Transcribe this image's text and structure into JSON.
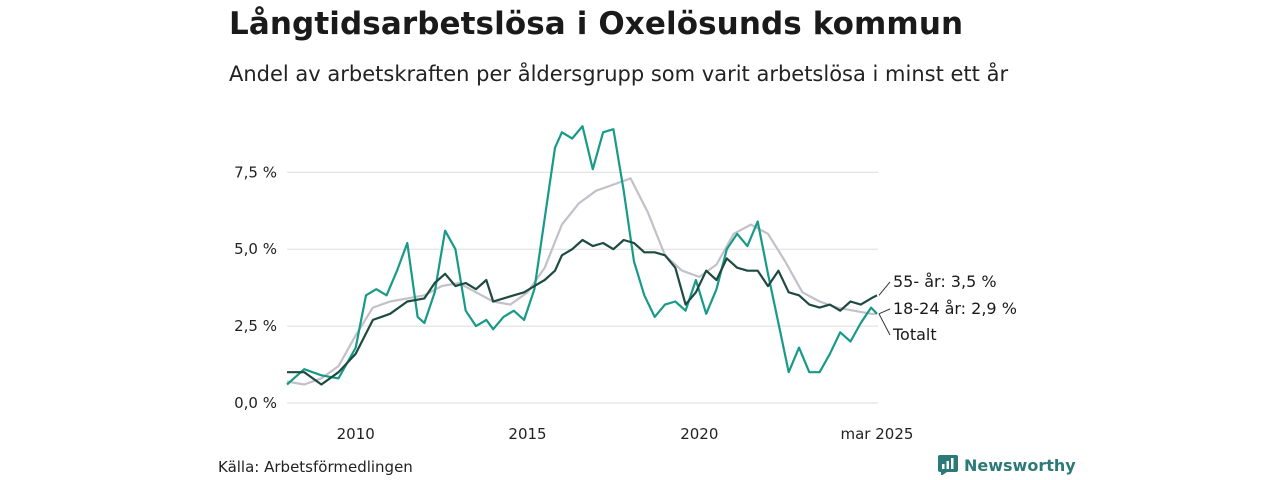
{
  "title": "Långtidsarbetslösa i Oxelösunds kommun",
  "subtitle": "Andel av arbetskraften per åldersgrupp som varit arbetslösa i minst ett år",
  "source": "Källa: Arbetsförmedlingen",
  "brand": "Newsworthy",
  "colors": {
    "totalt": "#c2c0c8",
    "age_18_24": "#179a87",
    "age_55": "#1f4a40",
    "grid": "#dddddd",
    "brand": "#2b7a78"
  },
  "chart_data": {
    "type": "line",
    "title": "Långtidsarbetslösa i Oxelösunds kommun",
    "subtitle": "Andel av arbetskraften per åldersgrupp som varit arbetslösa i minst ett år",
    "xlabel": "",
    "ylabel": "",
    "ylim": [
      0,
      9.2
    ],
    "xlim": [
      2008.0,
      2025.2
    ],
    "yticks": [
      0,
      2.5,
      5.0,
      7.5
    ],
    "ytick_labels": [
      "0,0 %",
      "2,5 %",
      "5,0 %",
      "7,5 %"
    ],
    "xticks": [
      2010,
      2015,
      2020,
      2025.17
    ],
    "xtick_labels": [
      "2010",
      "2015",
      "2020",
      "mar 2025"
    ],
    "grid": true,
    "legend": "inline labels at line ends",
    "series": [
      {
        "key": "totalt",
        "name": "Totalt",
        "end_label": "Totalt",
        "x": [
          2008.0,
          2008.5,
          2009.0,
          2009.5,
          2010.0,
          2010.5,
          2011.0,
          2011.5,
          2012.0,
          2012.5,
          2013.0,
          2013.5,
          2014.0,
          2014.5,
          2015.0,
          2015.5,
          2016.0,
          2016.5,
          2017.0,
          2017.5,
          2018.0,
          2018.5,
          2019.0,
          2019.5,
          2020.0,
          2020.5,
          2021.0,
          2021.5,
          2022.0,
          2022.5,
          2023.0,
          2023.5,
          2024.0,
          2024.5,
          2025.0,
          2025.17
        ],
        "values": [
          0.7,
          0.6,
          0.8,
          1.2,
          2.2,
          3.1,
          3.3,
          3.4,
          3.5,
          3.8,
          3.9,
          3.6,
          3.3,
          3.2,
          3.6,
          4.4,
          5.8,
          6.5,
          6.9,
          7.1,
          7.3,
          6.2,
          4.8,
          4.3,
          4.1,
          4.5,
          5.5,
          5.8,
          5.5,
          4.6,
          3.6,
          3.3,
          3.1,
          3.0,
          2.9,
          2.9
        ]
      },
      {
        "key": "age_18_24",
        "name": "18-24 år",
        "end_label": "18-24 år: 2,9 %",
        "x": [
          2008.0,
          2008.5,
          2009.0,
          2009.5,
          2010.0,
          2010.3,
          2010.6,
          2010.9,
          2011.2,
          2011.5,
          2011.8,
          2012.0,
          2012.3,
          2012.6,
          2012.9,
          2013.2,
          2013.5,
          2013.8,
          2014.0,
          2014.3,
          2014.6,
          2014.9,
          2015.2,
          2015.5,
          2015.8,
          2016.0,
          2016.3,
          2016.6,
          2016.9,
          2017.2,
          2017.5,
          2017.8,
          2018.1,
          2018.4,
          2018.7,
          2019.0,
          2019.3,
          2019.6,
          2019.9,
          2020.2,
          2020.5,
          2020.8,
          2021.1,
          2021.4,
          2021.7,
          2022.0,
          2022.3,
          2022.6,
          2022.9,
          2023.2,
          2023.5,
          2023.8,
          2024.1,
          2024.4,
          2024.7,
          2025.0,
          2025.17
        ],
        "values": [
          0.6,
          1.1,
          0.9,
          0.8,
          1.8,
          3.5,
          3.7,
          3.5,
          4.3,
          5.2,
          2.8,
          2.6,
          3.6,
          5.6,
          5.0,
          3.0,
          2.5,
          2.7,
          2.4,
          2.8,
          3.0,
          2.7,
          3.7,
          6.0,
          8.3,
          8.8,
          8.6,
          9.0,
          7.6,
          8.8,
          8.9,
          6.9,
          4.6,
          3.5,
          2.8,
          3.2,
          3.3,
          3.0,
          4.0,
          2.9,
          3.7,
          5.0,
          5.5,
          5.1,
          5.9,
          4.2,
          2.6,
          1.0,
          1.8,
          1.0,
          1.0,
          1.6,
          2.3,
          2.0,
          2.6,
          3.1,
          2.9
        ]
      },
      {
        "key": "age_55",
        "name": "55- år",
        "end_label": "55- år: 3,5 %",
        "x": [
          2008.0,
          2008.5,
          2009.0,
          2009.5,
          2010.0,
          2010.5,
          2011.0,
          2011.5,
          2012.0,
          2012.3,
          2012.6,
          2012.9,
          2013.2,
          2013.5,
          2013.8,
          2014.0,
          2014.3,
          2014.6,
          2014.9,
          2015.2,
          2015.5,
          2015.8,
          2016.0,
          2016.3,
          2016.6,
          2016.9,
          2017.2,
          2017.5,
          2017.8,
          2018.1,
          2018.4,
          2018.7,
          2019.0,
          2019.3,
          2019.6,
          2019.9,
          2020.2,
          2020.5,
          2020.8,
          2021.1,
          2021.4,
          2021.7,
          2022.0,
          2022.3,
          2022.6,
          2022.9,
          2023.2,
          2023.5,
          2023.8,
          2024.1,
          2024.4,
          2024.7,
          2025.0,
          2025.17
        ],
        "values": [
          1.0,
          1.0,
          0.6,
          1.0,
          1.6,
          2.7,
          2.9,
          3.3,
          3.4,
          3.9,
          4.2,
          3.8,
          3.9,
          3.7,
          4.0,
          3.3,
          3.4,
          3.5,
          3.6,
          3.8,
          4.0,
          4.3,
          4.8,
          5.0,
          5.3,
          5.1,
          5.2,
          5.0,
          5.3,
          5.2,
          4.9,
          4.9,
          4.8,
          4.4,
          3.2,
          3.6,
          4.3,
          4.0,
          4.7,
          4.4,
          4.3,
          4.3,
          3.8,
          4.3,
          3.6,
          3.5,
          3.2,
          3.1,
          3.2,
          3.0,
          3.3,
          3.2,
          3.4,
          3.5
        ]
      }
    ]
  }
}
